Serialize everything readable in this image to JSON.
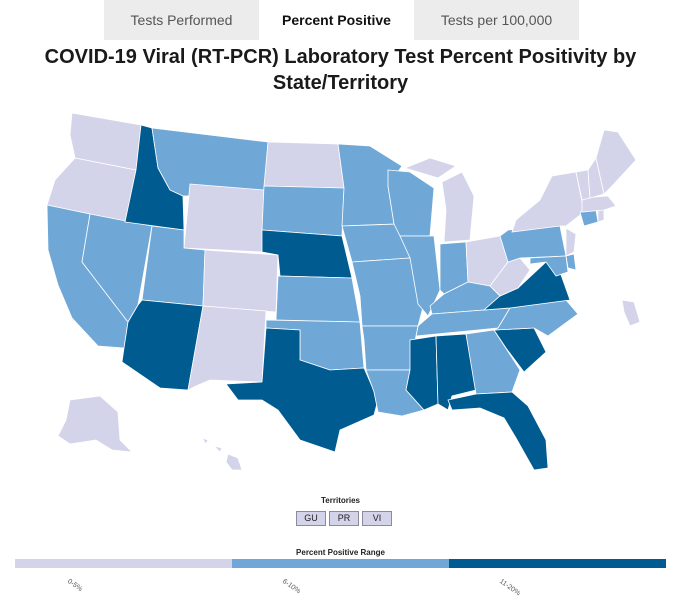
{
  "tabs": [
    {
      "label": "Tests Performed"
    },
    {
      "label": "Percent Positive"
    },
    {
      "label": "Tests per 100,000"
    }
  ],
  "title": "COVID-19 Viral (RT-PCR) Laboratory Test Percent Positivity by State/Territory",
  "colors": {
    "low": "#d3d3ea",
    "mid": "#6fa8d6",
    "high": "#005b91"
  },
  "territories": {
    "title": "Territories",
    "items": [
      {
        "label": "GU",
        "range": "low"
      },
      {
        "label": "PR",
        "range": "low"
      },
      {
        "label": "VI",
        "range": "low"
      }
    ]
  },
  "legend": {
    "title": "Percent Positive Range",
    "ranges": [
      {
        "key": "low",
        "label": "0-5%"
      },
      {
        "key": "mid",
        "label": "6-10%"
      },
      {
        "key": "high",
        "label": "11-20%"
      }
    ]
  },
  "states": {
    "WA": "low",
    "OR": "low",
    "ID": "high",
    "MT": "mid",
    "WY": "low",
    "ND": "low",
    "SD": "mid",
    "NE": "high",
    "MN": "mid",
    "WI": "mid",
    "MI": "low",
    "IA": "mid",
    "IL": "mid",
    "IN": "mid",
    "OH": "low",
    "CA": "mid",
    "NV": "mid",
    "UT": "mid",
    "CO": "low",
    "AZ": "high",
    "NM": "low",
    "KS": "mid",
    "MO": "mid",
    "OK": "mid",
    "TX": "high",
    "AR": "mid",
    "LA": "mid",
    "MS": "high",
    "AL": "high",
    "TN": "mid",
    "KY": "mid",
    "GA": "mid",
    "FL": "high",
    "SC": "high",
    "NC": "mid",
    "VA": "high",
    "WV": "low",
    "PA": "mid",
    "NY": "low",
    "NJ": "low",
    "DE": "mid",
    "MD": "mid",
    "CT": "mid",
    "RI": "low",
    "MA": "low",
    "VT": "low",
    "NH": "low",
    "ME": "low",
    "AK": "low",
    "HI": "low",
    "PRI": "low"
  }
}
